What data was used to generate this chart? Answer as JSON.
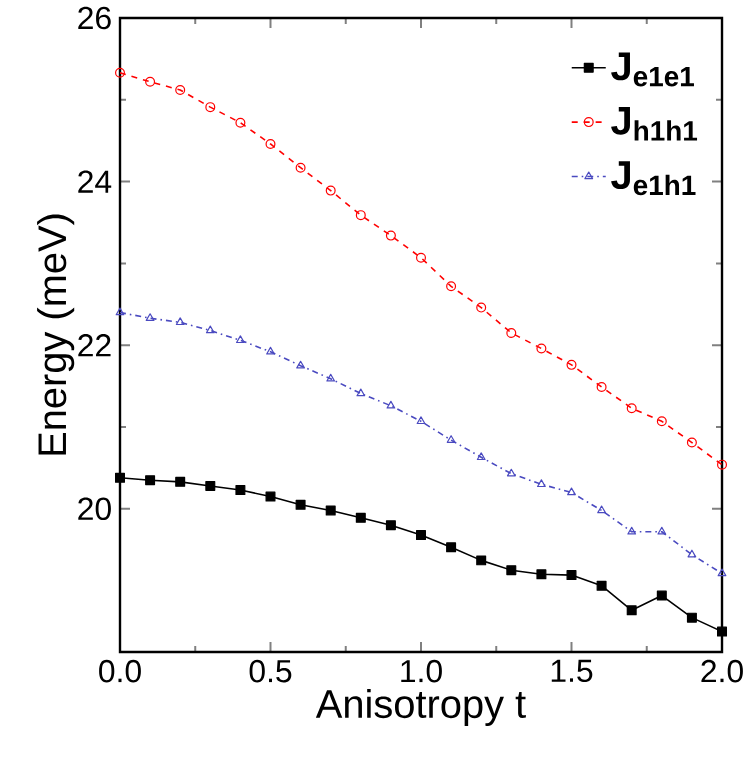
{
  "chart_data": {
    "type": "line",
    "xlabel": "Anisotropy t",
    "ylabel": "Energy (meV)",
    "x": [
      0,
      0.1,
      0.2,
      0.3,
      0.4,
      0.5,
      0.6,
      0.7,
      0.8,
      0.9,
      1.0,
      1.1,
      1.2,
      1.3,
      1.4,
      1.5,
      1.6,
      1.7,
      1.8,
      1.9,
      2.0
    ],
    "series": [
      {
        "name": "J$_{e1e1}$",
        "color": "#000000",
        "marker": "square",
        "line_style": "solid",
        "values": [
          20.38,
          20.35,
          20.33,
          20.28,
          20.23,
          20.15,
          20.05,
          19.98,
          19.89,
          19.8,
          19.68,
          19.53,
          19.37,
          19.25,
          19.2,
          19.19,
          19.06,
          18.76,
          18.94,
          18.67,
          18.5
        ]
      },
      {
        "name": "J$_{h1h1}$",
        "color": "#ff0000",
        "marker": "circle",
        "line_style": "dashed",
        "values": [
          25.33,
          25.22,
          25.12,
          24.91,
          24.72,
          24.46,
          24.17,
          23.89,
          23.59,
          23.34,
          23.07,
          22.72,
          22.46,
          22.15,
          21.96,
          21.76,
          21.49,
          21.23,
          21.07,
          20.81,
          20.54
        ]
      },
      {
        "name": "J$_{e1h1}$",
        "color": "#4a4ac0",
        "marker": "triangle",
        "line_style": "dotted",
        "values": [
          22.4,
          22.33,
          22.28,
          22.18,
          22.06,
          21.92,
          21.75,
          21.59,
          21.41,
          21.26,
          21.07,
          20.84,
          20.63,
          20.43,
          20.3,
          20.2,
          19.98,
          19.72,
          19.72,
          19.44,
          19.21
        ]
      }
    ],
    "xlim": [
      0,
      2
    ],
    "ylim": [
      18.25,
      26
    ],
    "xticks": [
      {
        "value": 0,
        "label": "0.0"
      },
      {
        "value": 0.5,
        "label": "0.5"
      },
      {
        "value": 1,
        "label": "1.0"
      },
      {
        "value": 1.5,
        "label": "1.5"
      },
      {
        "value": 2,
        "label": "2.0"
      }
    ],
    "yticks": [
      20,
      22,
      24,
      26
    ],
    "grid": false,
    "legend": "top right"
  }
}
